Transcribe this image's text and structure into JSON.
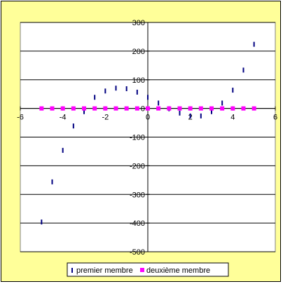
{
  "chart_data": {
    "type": "scatter",
    "title": "",
    "xlabel": "",
    "ylabel": "",
    "xlim": [
      -6,
      6
    ],
    "ylim": [
      -500,
      300
    ],
    "x_ticks": [
      -6,
      -4,
      -2,
      0,
      2,
      4,
      6
    ],
    "y_ticks": [
      300,
      200,
      100,
      0,
      -100,
      -200,
      -300,
      -400,
      -500
    ],
    "grid": "horizontal gridlines",
    "legend_position": "bottom",
    "series": [
      {
        "name": "premier membre",
        "color": "#000080",
        "marker": "dash",
        "points": [
          [
            -5,
            -395
          ],
          [
            -4.5,
            -255
          ],
          [
            -4,
            -145
          ],
          [
            -3.5,
            -60
          ],
          [
            -3,
            -10
          ],
          [
            -2.5,
            40
          ],
          [
            -2,
            62
          ],
          [
            -1.5,
            72
          ],
          [
            -1,
            70
          ],
          [
            -0.5,
            58
          ],
          [
            0,
            40
          ],
          [
            0.5,
            20
          ],
          [
            1,
            0
          ],
          [
            1.5,
            -15
          ],
          [
            2,
            -25
          ],
          [
            2.5,
            -25
          ],
          [
            3,
            -10
          ],
          [
            3.5,
            20
          ],
          [
            4,
            65
          ],
          [
            4.5,
            135
          ],
          [
            5,
            225
          ]
        ]
      },
      {
        "name": "deuxième membre",
        "color": "#ff00ff",
        "marker": "square",
        "points": [
          [
            -5,
            0
          ],
          [
            -4.5,
            0
          ],
          [
            -4,
            0
          ],
          [
            -3.5,
            0
          ],
          [
            -3,
            0
          ],
          [
            -2.5,
            0
          ],
          [
            -2,
            0
          ],
          [
            -1.5,
            0
          ],
          [
            -1,
            0
          ],
          [
            -0.5,
            0
          ],
          [
            0,
            0
          ],
          [
            0.5,
            0
          ],
          [
            1,
            0
          ],
          [
            1.5,
            0
          ],
          [
            2,
            0
          ],
          [
            2.5,
            0
          ],
          [
            3,
            0
          ],
          [
            3.5,
            0
          ],
          [
            4,
            0
          ],
          [
            4.5,
            0
          ],
          [
            5,
            0
          ]
        ]
      }
    ]
  }
}
